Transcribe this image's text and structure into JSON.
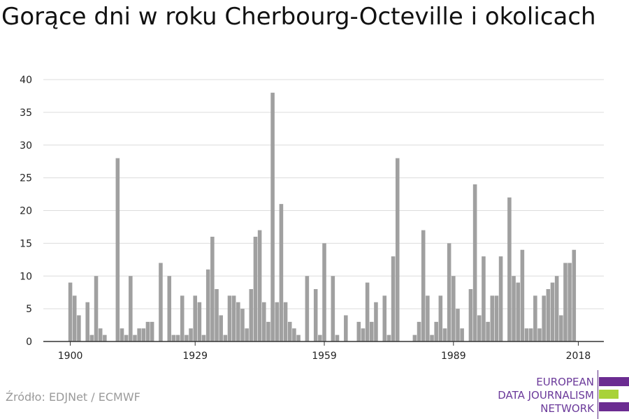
{
  "title": "Gorące dni w roku Cherbourg-Octeville i okolicach",
  "source": "Źródło: EDJNet / ECMWF",
  "logo": {
    "line1": "EUROPEAN",
    "line2": "DATA JOURNALISM",
    "line3": "NETWORK",
    "text_color": "#6b3a9a",
    "bar_purple": "#6b2c91",
    "bar_green": "#a8d23a"
  },
  "colors": {
    "bar": "#a0a0a0",
    "grid": "#dcdcdc",
    "axis": "#333333"
  },
  "chart_data": {
    "type": "bar",
    "title": "Gorące dni w roku Cherbourg-Octeville i okolicach",
    "xlabel": "",
    "ylabel": "",
    "ylim": [
      0,
      40
    ],
    "yticks": [
      0,
      5,
      10,
      15,
      20,
      25,
      30,
      35,
      40
    ],
    "xticks": [
      1900,
      1929,
      1959,
      1989,
      2018
    ],
    "grid": true,
    "x": [
      1900,
      1901,
      1902,
      1903,
      1904,
      1905,
      1906,
      1907,
      1908,
      1909,
      1910,
      1911,
      1912,
      1913,
      1914,
      1915,
      1916,
      1917,
      1918,
      1919,
      1920,
      1921,
      1922,
      1923,
      1924,
      1925,
      1926,
      1927,
      1928,
      1929,
      1930,
      1931,
      1932,
      1933,
      1934,
      1935,
      1936,
      1937,
      1938,
      1939,
      1940,
      1941,
      1942,
      1943,
      1944,
      1945,
      1946,
      1947,
      1948,
      1949,
      1950,
      1951,
      1952,
      1953,
      1954,
      1955,
      1956,
      1957,
      1958,
      1959,
      1960,
      1961,
      1962,
      1963,
      1964,
      1965,
      1966,
      1967,
      1968,
      1969,
      1970,
      1971,
      1972,
      1973,
      1974,
      1975,
      1976,
      1977,
      1978,
      1979,
      1980,
      1981,
      1982,
      1983,
      1984,
      1985,
      1986,
      1987,
      1988,
      1989,
      1990,
      1991,
      1992,
      1993,
      1994,
      1995,
      1996,
      1997,
      1998,
      1999,
      2000,
      2001,
      2002,
      2003,
      2004,
      2005,
      2006,
      2007,
      2008,
      2009,
      2010,
      2011,
      2012,
      2013,
      2014,
      2015,
      2016,
      2017,
      2018,
      2019
    ],
    "values": [
      9,
      7,
      4,
      0,
      6,
      1,
      10,
      2,
      1,
      0,
      0,
      28,
      2,
      1,
      10,
      1,
      2,
      2,
      3,
      3,
      0,
      12,
      0,
      10,
      1,
      1,
      7,
      1,
      2,
      7,
      6,
      1,
      11,
      16,
      8,
      4,
      1,
      7,
      7,
      6,
      5,
      2,
      8,
      16,
      17,
      6,
      3,
      38,
      6,
      21,
      6,
      3,
      2,
      1,
      0,
      10,
      0,
      8,
      1,
      15,
      0,
      10,
      1,
      0,
      4,
      0,
      0,
      3,
      2,
      9,
      3,
      6,
      0,
      7,
      1,
      13,
      28,
      0,
      0,
      0,
      1,
      3,
      17,
      7,
      1,
      3,
      7,
      2,
      15,
      10,
      5,
      2,
      0,
      8,
      24,
      4,
      13,
      3,
      7,
      7,
      13,
      0,
      22,
      10,
      9,
      14,
      2,
      2,
      7,
      2,
      7,
      8,
      9,
      10,
      4,
      12,
      12,
      14,
      0,
      0
    ]
  }
}
